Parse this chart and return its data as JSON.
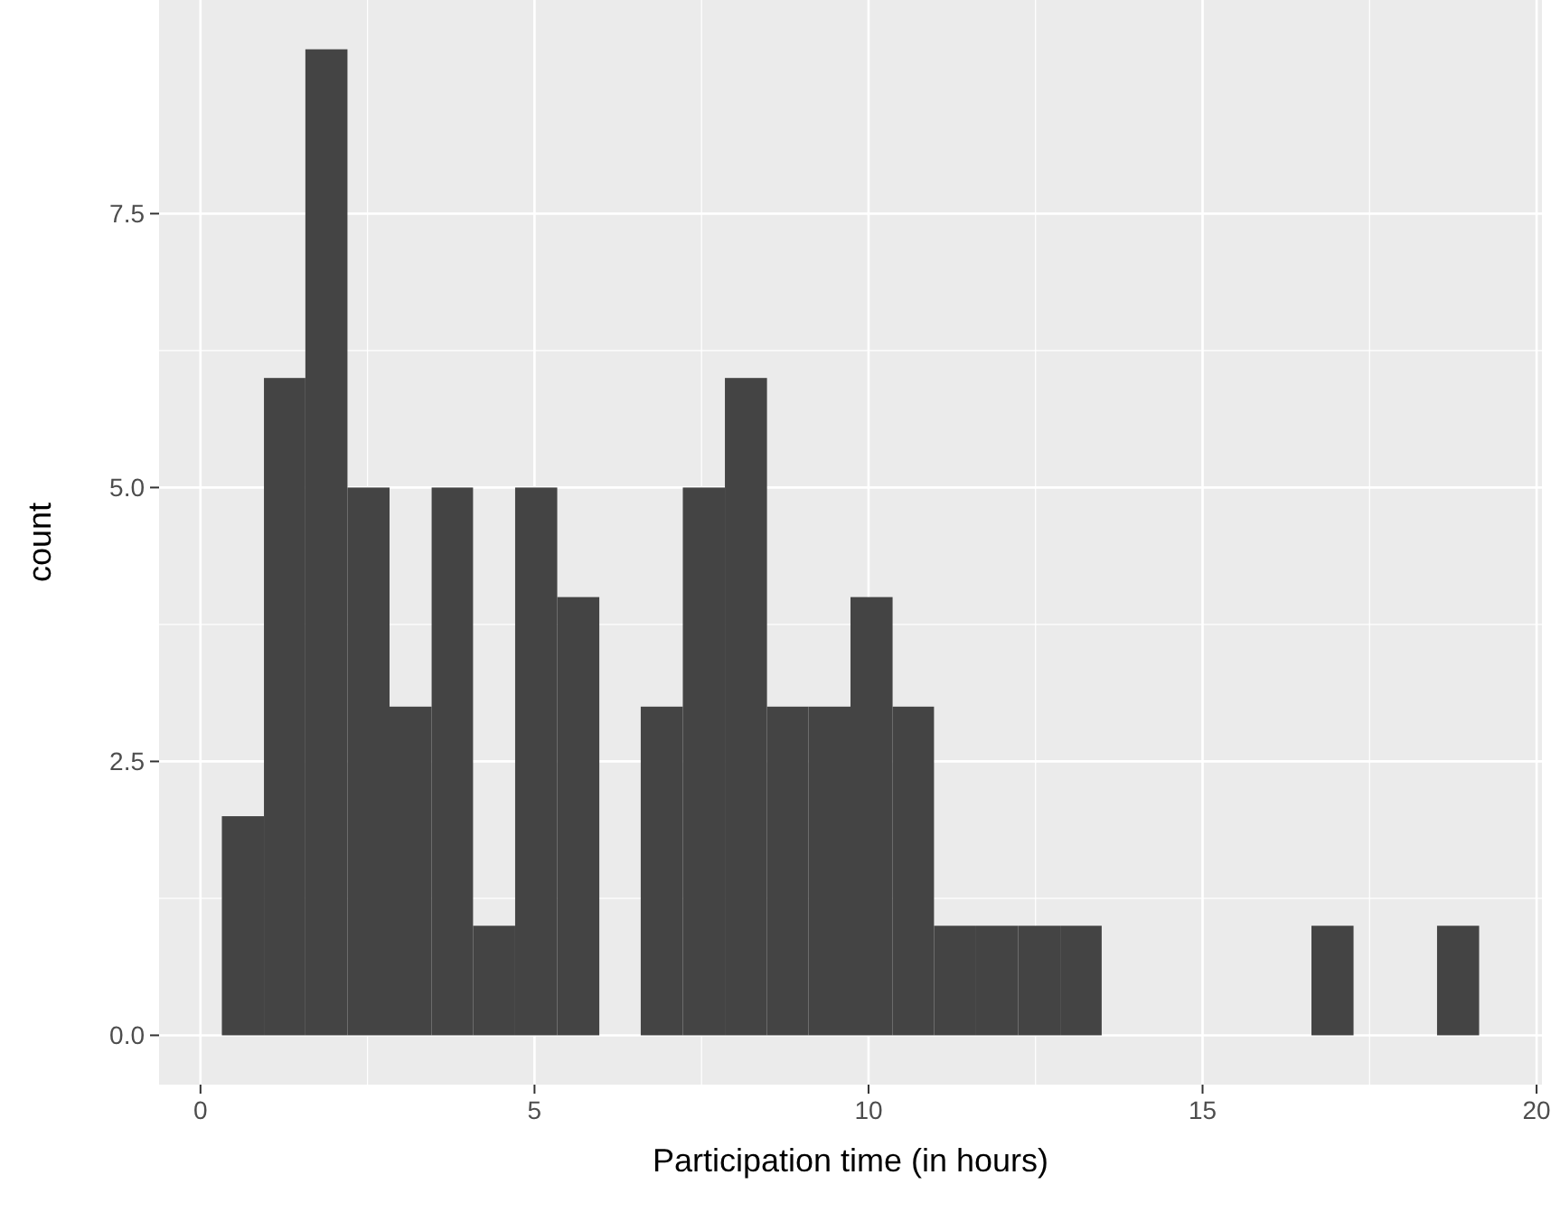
{
  "chart_data": {
    "type": "histogram",
    "xlabel": "Participation time (in hours)",
    "ylabel": "count",
    "bins": [
      0.32,
      0.95,
      1.57,
      2.2,
      2.83,
      3.46,
      4.08,
      4.71,
      5.34,
      5.97,
      6.59,
      7.22,
      7.85,
      8.48,
      9.1,
      9.73,
      10.36,
      10.98,
      11.61,
      12.24,
      12.87,
      13.49,
      16.63,
      17.26,
      18.51,
      19.14
    ],
    "values": [
      2,
      6,
      9,
      5,
      3,
      5,
      1,
      5,
      4,
      0,
      3,
      5,
      6,
      3,
      3,
      4,
      3,
      1,
      1,
      1,
      1,
      0,
      1,
      0,
      1
    ],
    "color": "#444444",
    "xlim": [
      -0.62,
      20.08
    ],
    "xticks": [
      0,
      5,
      10,
      15,
      20
    ],
    "ylim": [
      -0.45,
      9.45
    ],
    "yticks": [
      {
        "value": 0,
        "label": "0.0"
      },
      {
        "value": 2.5,
        "label": "2.5"
      },
      {
        "value": 5,
        "label": "5.0"
      },
      {
        "value": 7.5,
        "label": "7.5"
      }
    ],
    "grid": true
  }
}
